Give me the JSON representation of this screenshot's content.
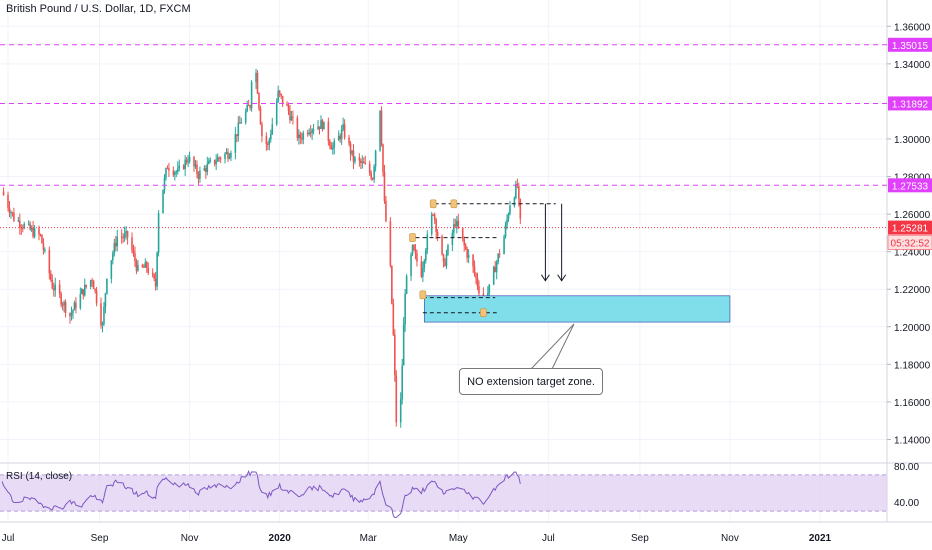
{
  "chart_data": {
    "type": "candlestick",
    "title": "British Pound / U.S. Dollar, 1D, FXCM",
    "symbol": "GBPUSD",
    "timeframe": "1D",
    "last_price": "1.25281",
    "countdown": "05:32:52",
    "x_axis": {
      "tick_labels": [
        "Jul",
        "Sep",
        "Nov",
        "2020",
        "Mar",
        "May",
        "Jul",
        "Sep",
        "Nov",
        "2021"
      ],
      "tick_dates": [
        "2019-07-01",
        "2019-09-01",
        "2019-11-01",
        "2020-01-01",
        "2020-03-01",
        "2020-05-01",
        "2020-07-01",
        "2020-09-01",
        "2020-11-01",
        "2021-01-01"
      ]
    },
    "y_axis": {
      "ylim": [
        1.128,
        1.374
      ],
      "tick_labels": [
        "1.36000",
        "1.34000",
        "1.30000",
        "1.28000",
        "1.26000",
        "1.24000",
        "1.22000",
        "1.20000",
        "1.18000",
        "1.16000",
        "1.14000"
      ],
      "tick_values": [
        1.36,
        1.34,
        1.3,
        1.28,
        1.26,
        1.24,
        1.22,
        1.2,
        1.18,
        1.16,
        1.14
      ]
    },
    "price_path": [
      [
        "2019-06-27",
        1.272
      ],
      [
        "2019-07-05",
        1.258
      ],
      [
        "2019-07-15",
        1.252
      ],
      [
        "2019-07-23",
        1.248
      ],
      [
        "2019-07-31",
        1.222
      ],
      [
        "2019-08-05",
        1.216
      ],
      [
        "2019-08-12",
        1.206
      ],
      [
        "2019-08-20",
        1.218
      ],
      [
        "2019-08-27",
        1.226
      ],
      [
        "2019-09-03",
        1.2
      ],
      [
        "2019-09-06",
        1.228
      ],
      [
        "2019-09-13",
        1.248
      ],
      [
        "2019-09-20",
        1.248
      ],
      [
        "2019-09-27",
        1.23
      ],
      [
        "2019-10-03",
        1.232
      ],
      [
        "2019-10-09",
        1.222
      ],
      [
        "2019-10-11",
        1.262
      ],
      [
        "2019-10-17",
        1.286
      ],
      [
        "2019-10-24",
        1.282
      ],
      [
        "2019-10-31",
        1.29
      ],
      [
        "2019-11-07",
        1.281
      ],
      [
        "2019-11-14",
        1.286
      ],
      [
        "2019-11-21",
        1.29
      ],
      [
        "2019-11-28",
        1.293
      ],
      [
        "2019-12-06",
        1.31
      ],
      [
        "2019-12-12",
        1.318
      ],
      [
        "2019-12-13",
        1.333
      ],
      [
        "2019-12-16",
        1.335
      ],
      [
        "2019-12-20",
        1.302
      ],
      [
        "2019-12-24",
        1.296
      ],
      [
        "2019-12-31",
        1.324
      ],
      [
        "2020-01-07",
        1.315
      ],
      [
        "2020-01-14",
        1.3
      ],
      [
        "2020-01-21",
        1.306
      ],
      [
        "2020-01-30",
        1.308
      ],
      [
        "2020-02-06",
        1.295
      ],
      [
        "2020-02-13",
        1.305
      ],
      [
        "2020-02-20",
        1.289
      ],
      [
        "2020-02-27",
        1.286
      ],
      [
        "2020-03-04",
        1.28
      ],
      [
        "2020-03-09",
        1.317
      ],
      [
        "2020-03-12",
        1.265
      ],
      [
        "2020-03-16",
        1.23
      ],
      [
        "2020-03-18",
        1.195
      ],
      [
        "2020-03-20",
        1.15
      ],
      [
        "2020-03-23",
        1.16
      ],
      [
        "2020-03-26",
        1.22
      ],
      [
        "2020-03-31",
        1.241
      ],
      [
        "2020-04-06",
        1.229
      ],
      [
        "2020-04-09",
        1.243
      ],
      [
        "2020-04-14",
        1.262
      ],
      [
        "2020-04-21",
        1.232
      ],
      [
        "2020-04-29",
        1.256
      ],
      [
        "2020-05-05",
        1.243
      ],
      [
        "2020-05-11",
        1.231
      ],
      [
        "2020-05-18",
        1.212
      ],
      [
        "2020-05-22",
        1.22
      ],
      [
        "2020-05-26",
        1.232
      ],
      [
        "2020-06-01",
        1.248
      ],
      [
        "2020-06-05",
        1.266
      ],
      [
        "2020-06-10",
        1.275
      ],
      [
        "2020-06-12",
        1.255
      ]
    ],
    "horizontal_levels": [
      {
        "price": 1.35015,
        "label": "1.35015",
        "color": "#e040fb",
        "style": "dashed"
      },
      {
        "price": 1.31892,
        "label": "1.31892",
        "color": "#e040fb",
        "style": "dashed"
      },
      {
        "price": 1.27533,
        "label": "1.27533",
        "color": "#e040fb",
        "style": "dashed"
      },
      {
        "price": 1.25281,
        "label": "1.25281",
        "color": "#f23645",
        "style": "dotted"
      }
    ],
    "annotation": {
      "target_zone": {
        "x_start": "2020-04-06",
        "x_end": "2020-11-01",
        "y_low": 1.2025,
        "y_high": 1.2165,
        "fill": "#80deea"
      },
      "callout_text": "NO extension target zone.",
      "arrows_down_count": 2
    },
    "rsi": {
      "title": "RSI (14, close)",
      "tick_labels": [
        "80.00",
        "40.00"
      ],
      "tick_values": [
        80,
        40
      ],
      "band": [
        30,
        70
      ],
      "ylim": [
        18,
        82
      ],
      "values": [
        [
          "2019-06-27",
          60
        ],
        [
          "2019-07-05",
          40
        ],
        [
          "2019-07-15",
          44
        ],
        [
          "2019-07-23",
          38
        ],
        [
          "2019-07-31",
          34
        ],
        [
          "2019-08-05",
          33
        ],
        [
          "2019-08-12",
          40
        ],
        [
          "2019-08-20",
          36
        ],
        [
          "2019-08-27",
          48
        ],
        [
          "2019-09-03",
          38
        ],
        [
          "2019-09-06",
          58
        ],
        [
          "2019-09-13",
          62
        ],
        [
          "2019-09-20",
          56
        ],
        [
          "2019-09-27",
          48
        ],
        [
          "2019-10-03",
          50
        ],
        [
          "2019-10-09",
          44
        ],
        [
          "2019-10-11",
          62
        ],
        [
          "2019-10-17",
          66
        ],
        [
          "2019-10-24",
          58
        ],
        [
          "2019-10-31",
          60
        ],
        [
          "2019-11-07",
          50
        ],
        [
          "2019-11-14",
          56
        ],
        [
          "2019-11-21",
          58
        ],
        [
          "2019-11-28",
          56
        ],
        [
          "2019-12-06",
          66
        ],
        [
          "2019-12-12",
          72
        ],
        [
          "2019-12-13",
          76
        ],
        [
          "2019-12-16",
          74
        ],
        [
          "2019-12-20",
          48
        ],
        [
          "2019-12-24",
          46
        ],
        [
          "2019-12-31",
          58
        ],
        [
          "2020-01-07",
          52
        ],
        [
          "2020-01-14",
          48
        ],
        [
          "2020-01-21",
          54
        ],
        [
          "2020-01-30",
          56
        ],
        [
          "2020-02-06",
          46
        ],
        [
          "2020-02-13",
          54
        ],
        [
          "2020-02-20",
          44
        ],
        [
          "2020-02-27",
          42
        ],
        [
          "2020-03-04",
          48
        ],
        [
          "2020-03-09",
          64
        ],
        [
          "2020-03-12",
          40
        ],
        [
          "2020-03-16",
          34
        ],
        [
          "2020-03-18",
          26
        ],
        [
          "2020-03-20",
          22
        ],
        [
          "2020-03-23",
          30
        ],
        [
          "2020-03-26",
          46
        ],
        [
          "2020-03-31",
          54
        ],
        [
          "2020-04-06",
          52
        ],
        [
          "2020-04-09",
          56
        ],
        [
          "2020-04-14",
          62
        ],
        [
          "2020-04-21",
          50
        ],
        [
          "2020-04-29",
          56
        ],
        [
          "2020-05-05",
          52
        ],
        [
          "2020-05-11",
          46
        ],
        [
          "2020-05-18",
          40
        ],
        [
          "2020-05-22",
          46
        ],
        [
          "2020-05-26",
          56
        ],
        [
          "2020-06-01",
          66
        ],
        [
          "2020-06-05",
          70
        ],
        [
          "2020-06-10",
          72
        ],
        [
          "2020-06-12",
          60
        ]
      ]
    }
  },
  "colors": {
    "bull": "#26a69a",
    "bear": "#ef5350",
    "grid": "#f0f3fa",
    "axis_text": "#131722",
    "level": "#e040fb",
    "last_price": "#f23645",
    "rsi_line": "#7e57c2",
    "rsi_band": "#e1d2f3",
    "zone_fill": "#80deea",
    "zone_border": "#3f51b5",
    "pattern_marker": "#f0c27b"
  }
}
